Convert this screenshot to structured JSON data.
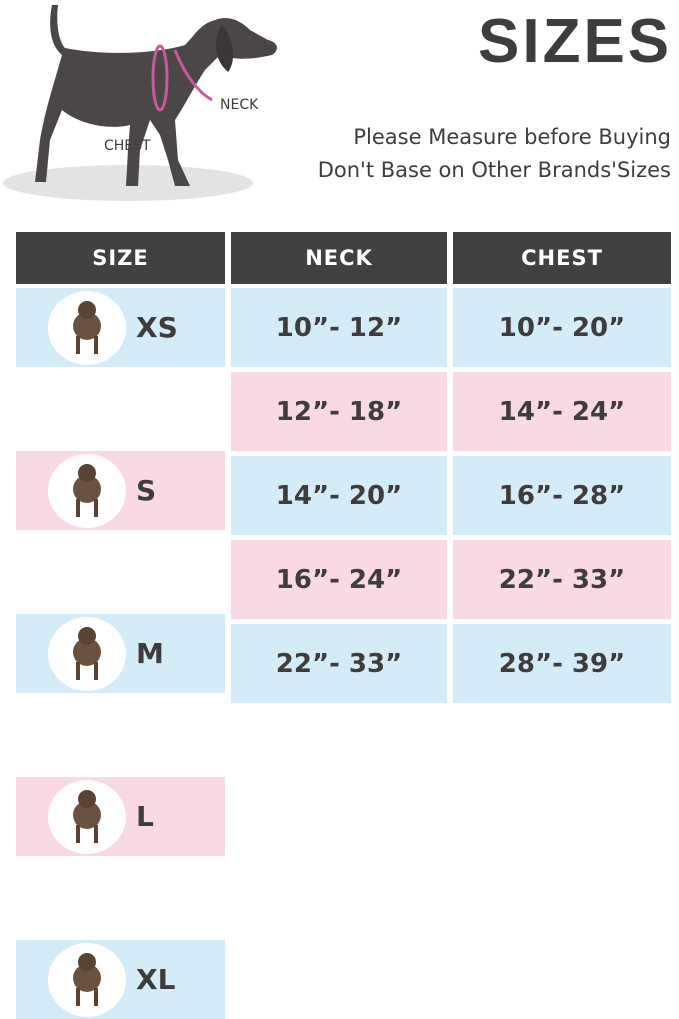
{
  "header": {
    "title": "SIZES",
    "subtitle_line1": "Please Measure before Buying",
    "subtitle_line2": "Don't Base on Other Brands'Sizes",
    "diagram_labels": {
      "neck": "NECK",
      "chest": "CHEST"
    }
  },
  "colors": {
    "header_bg": "#434040",
    "row_blue": "#d4ebf8",
    "row_pink": "#f9d9e6",
    "harness": "#c75a9c"
  },
  "table": {
    "columns": [
      "SIZE",
      "NECK",
      "CHEST"
    ],
    "rows": [
      {
        "size": "XS",
        "neck": "10”- 12”",
        "chest": "10”- 20”",
        "color": "blue",
        "icon": "chihuahua-photo"
      },
      {
        "size": "S",
        "neck": "12”- 18”",
        "chest": "14”- 24”",
        "color": "pink",
        "icon": "beagle-photo"
      },
      {
        "size": "M",
        "neck": "14”- 20”",
        "chest": "16”- 28”",
        "color": "blue",
        "icon": "shiba-inu-photo"
      },
      {
        "size": "L",
        "neck": "16”- 24”",
        "chest": "22”- 33”",
        "color": "pink",
        "icon": "labrador-photo"
      },
      {
        "size": "XL",
        "neck": "22”- 33”",
        "chest": "28”- 39”",
        "color": "blue",
        "icon": "great-dane-photo"
      }
    ]
  }
}
